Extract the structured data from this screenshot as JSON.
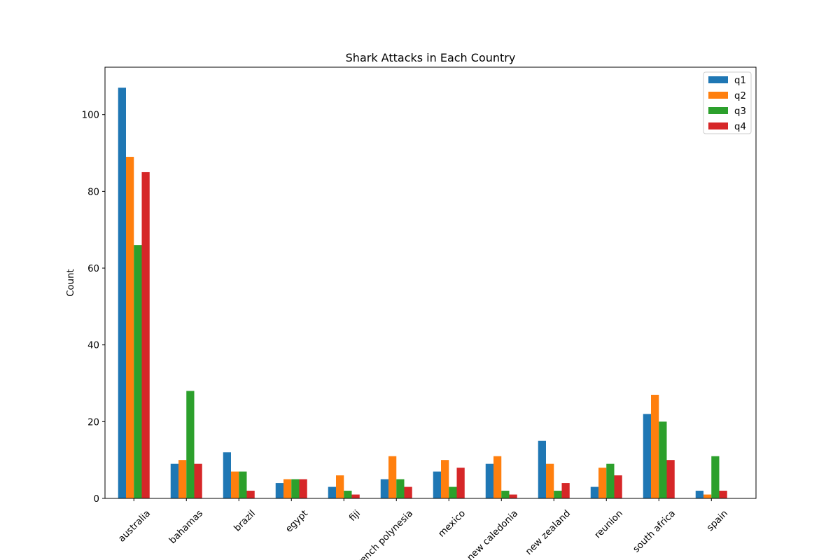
{
  "chart_data": {
    "type": "bar",
    "title": "Shark Attacks in Each Country",
    "xlabel": "",
    "ylabel": "Count",
    "categories": [
      "australia",
      "bahamas",
      "brazil",
      "egypt",
      "fiji",
      "french polynesia",
      "mexico",
      "new caledonia",
      "new zealand",
      "reunion",
      "south africa",
      "spain"
    ],
    "series": [
      {
        "name": "q1",
        "color": "#1f77b4",
        "values": [
          107,
          9,
          12,
          4,
          3,
          5,
          7,
          9,
          15,
          3,
          22,
          2
        ]
      },
      {
        "name": "q2",
        "color": "#ff7f0e",
        "values": [
          89,
          10,
          7,
          5,
          6,
          11,
          10,
          11,
          9,
          8,
          27,
          1
        ]
      },
      {
        "name": "q3",
        "color": "#2ca02c",
        "values": [
          66,
          28,
          7,
          5,
          2,
          5,
          3,
          2,
          2,
          9,
          20,
          11
        ]
      },
      {
        "name": "q4",
        "color": "#d62728",
        "values": [
          85,
          9,
          2,
          5,
          1,
          3,
          8,
          1,
          4,
          6,
          10,
          2
        ]
      }
    ],
    "ylim": [
      0,
      112.35
    ],
    "yticks": [
      0,
      20,
      40,
      60,
      80,
      100
    ],
    "grid": false,
    "legend": "top-right"
  }
}
